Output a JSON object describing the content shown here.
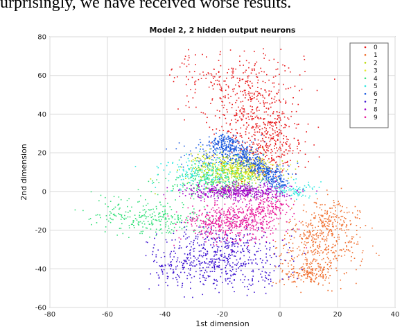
{
  "page": {
    "caption_fragment": "urprisingly, we have received worse results."
  },
  "chart_data": {
    "type": "scatter",
    "title": "Model 2, 2 hidden output neurons",
    "xlabel": "1st dimension",
    "ylabel": "2nd dimension",
    "xlim": [
      -80,
      40
    ],
    "ylim": [
      -60,
      80
    ],
    "xticks": [
      -80,
      -60,
      -40,
      -20,
      0,
      20,
      40
    ],
    "yticks": [
      -60,
      -40,
      -20,
      0,
      20,
      40,
      60,
      80
    ],
    "grid": true,
    "legend_position": "top-right",
    "series": [
      {
        "name": "0",
        "color": "#e8181a",
        "clusters": [
          {
            "cx": -10,
            "cy": 48,
            "sx": 9,
            "sy": 13,
            "n": 420
          },
          {
            "cx": -4,
            "cy": 25,
            "sx": 6,
            "sy": 8,
            "n": 300
          },
          {
            "cx": -26,
            "cy": 62,
            "sx": 6,
            "sy": 5,
            "n": 60
          }
        ]
      },
      {
        "name": "1",
        "color": "#f07030",
        "clusters": [
          {
            "cx": 14,
            "cy": -27,
            "sx": 7,
            "sy": 9,
            "n": 380
          },
          {
            "cx": 10,
            "cy": -42,
            "sx": 5,
            "sy": 3,
            "n": 150
          },
          {
            "cx": 18,
            "cy": -15,
            "sx": 5,
            "sy": 5,
            "n": 120
          }
        ]
      },
      {
        "name": "2",
        "color": "#b8d800",
        "clusters": [
          {
            "cx": -16,
            "cy": 10,
            "sx": 7,
            "sy": 4,
            "n": 330
          },
          {
            "cx": -26,
            "cy": 15,
            "sx": 3,
            "sy": 4,
            "n": 60
          }
        ]
      },
      {
        "name": "3",
        "color": "#e8e830",
        "clusters": [
          {
            "cx": -12,
            "cy": 12,
            "sx": 6,
            "sy": 4,
            "n": 220
          }
        ]
      },
      {
        "name": "4",
        "color": "#35e07a",
        "clusters": [
          {
            "cx": -22,
            "cy": 5,
            "sx": 9,
            "sy": 4,
            "n": 260
          },
          {
            "cx": -42,
            "cy": -14,
            "sx": 8,
            "sy": 4,
            "n": 220
          },
          {
            "cx": -58,
            "cy": -10,
            "sx": 4,
            "sy": 5,
            "n": 50
          }
        ]
      },
      {
        "name": "5",
        "color": "#2fe8e0",
        "clusters": [
          {
            "cx": -28,
            "cy": 10,
            "sx": 7,
            "sy": 5,
            "n": 180
          },
          {
            "cx": 5,
            "cy": 1,
            "sx": 4,
            "sy": 2,
            "n": 90
          }
        ]
      },
      {
        "name": "6",
        "color": "#1a5ae0",
        "clusters": [
          {
            "cx": -20,
            "cy": 20,
            "sx": 7,
            "sy": 4,
            "n": 140
          }
        ],
        "band": {
          "x0": -22,
          "y0": 28,
          "x1": 2,
          "y1": 3,
          "spread": 2.2,
          "n": 520
        }
      },
      {
        "name": "7",
        "color": "#3a10d0",
        "clusters": [
          {
            "cx": -18,
            "cy": -33,
            "sx": 10,
            "sy": 8,
            "n": 520
          },
          {
            "cx": -36,
            "cy": -38,
            "sx": 6,
            "sy": 5,
            "n": 120
          }
        ]
      },
      {
        "name": "8",
        "color": "#a000c8",
        "clusters": [
          {
            "cx": -15,
            "cy": 0,
            "sx": 9,
            "sy": 2,
            "n": 450
          }
        ]
      },
      {
        "name": "9",
        "color": "#e8189a",
        "clusters": [
          {
            "cx": -16,
            "cy": -16,
            "sx": 8,
            "sy": 5,
            "n": 540
          },
          {
            "cx": -4,
            "cy": -8,
            "sx": 4,
            "sy": 3,
            "n": 120
          }
        ]
      }
    ]
  }
}
